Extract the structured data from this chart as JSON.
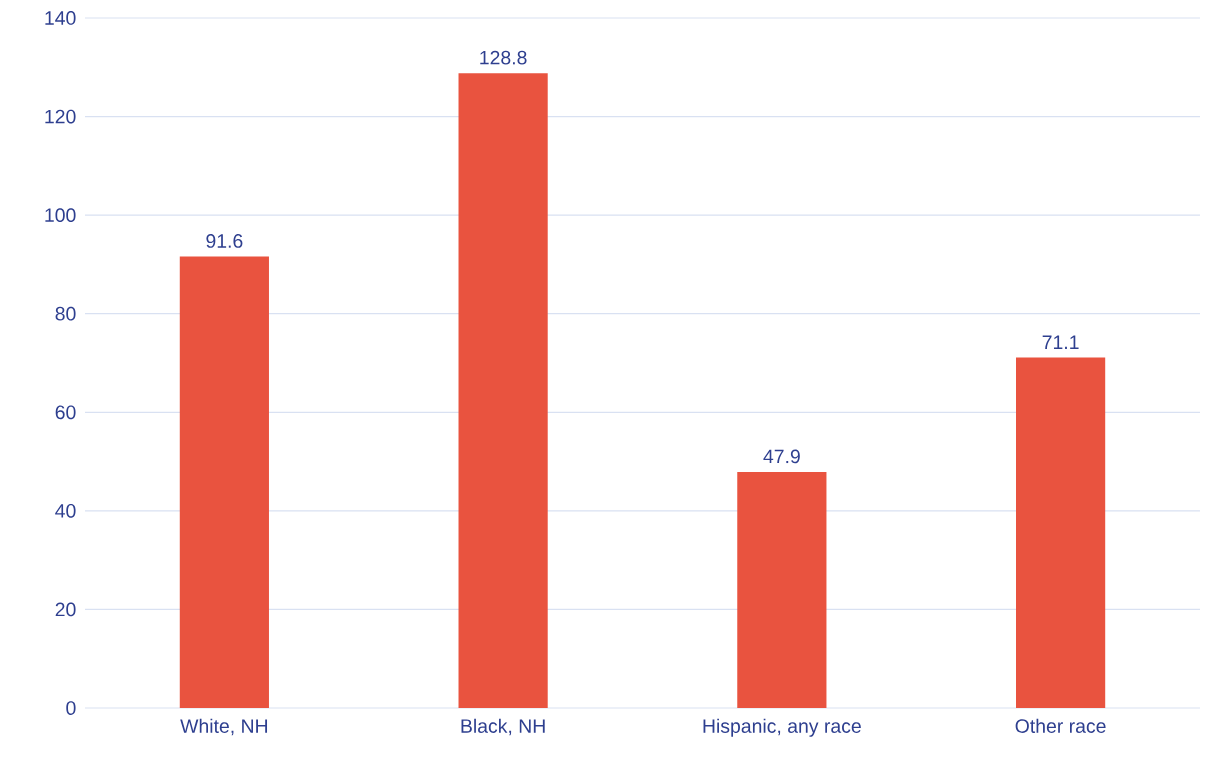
{
  "chart_data": {
    "type": "bar",
    "categories": [
      "White, NH",
      "Black, NH",
      "Hispanic, any race",
      "Other race"
    ],
    "values": [
      91.6,
      128.8,
      47.9,
      71.1
    ],
    "color": "#e9533f",
    "ylim": [
      0,
      140
    ],
    "yticks": [
      0,
      20,
      40,
      60,
      80,
      100,
      120,
      140
    ],
    "grid": "y",
    "data_labels": true
  }
}
